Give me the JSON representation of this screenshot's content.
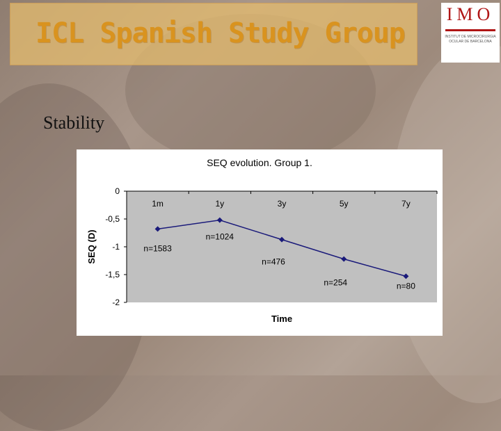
{
  "slide": {
    "title": "ICL Spanish Study Group",
    "section": "Stability"
  },
  "logo": {
    "letters": "IMO",
    "subtitle": "Institut de Microcirurgia Ocular de Barcelona"
  },
  "colors": {
    "title_fill": "#e8be6e",
    "title_text": "#d9931f",
    "plot_bg": "#c0c0c0",
    "series": "#1a1a7a",
    "logo_red": "#b01515"
  },
  "chart_data": {
    "type": "line",
    "title": "SEQ evolution. Group 1.",
    "xlabel": "Time",
    "ylabel": "SEQ (D)",
    "categories": [
      "1m",
      "1y",
      "3y",
      "5y",
      "7y"
    ],
    "x_axis_position": "top",
    "ylim": [
      -2,
      0
    ],
    "yticks": [
      0,
      -0.5,
      -1,
      -1.5,
      -2
    ],
    "ytick_labels": [
      "0",
      "-0,5",
      "-1",
      "-1,5",
      "-2"
    ],
    "grid": false,
    "legend": "none",
    "series": [
      {
        "values": [
          -0.68,
          -0.52,
          -0.87,
          -1.22,
          -1.53
        ]
      }
    ],
    "point_labels": [
      "n=1583",
      "n=1024",
      "n=476",
      "n=254",
      "n=80"
    ]
  }
}
